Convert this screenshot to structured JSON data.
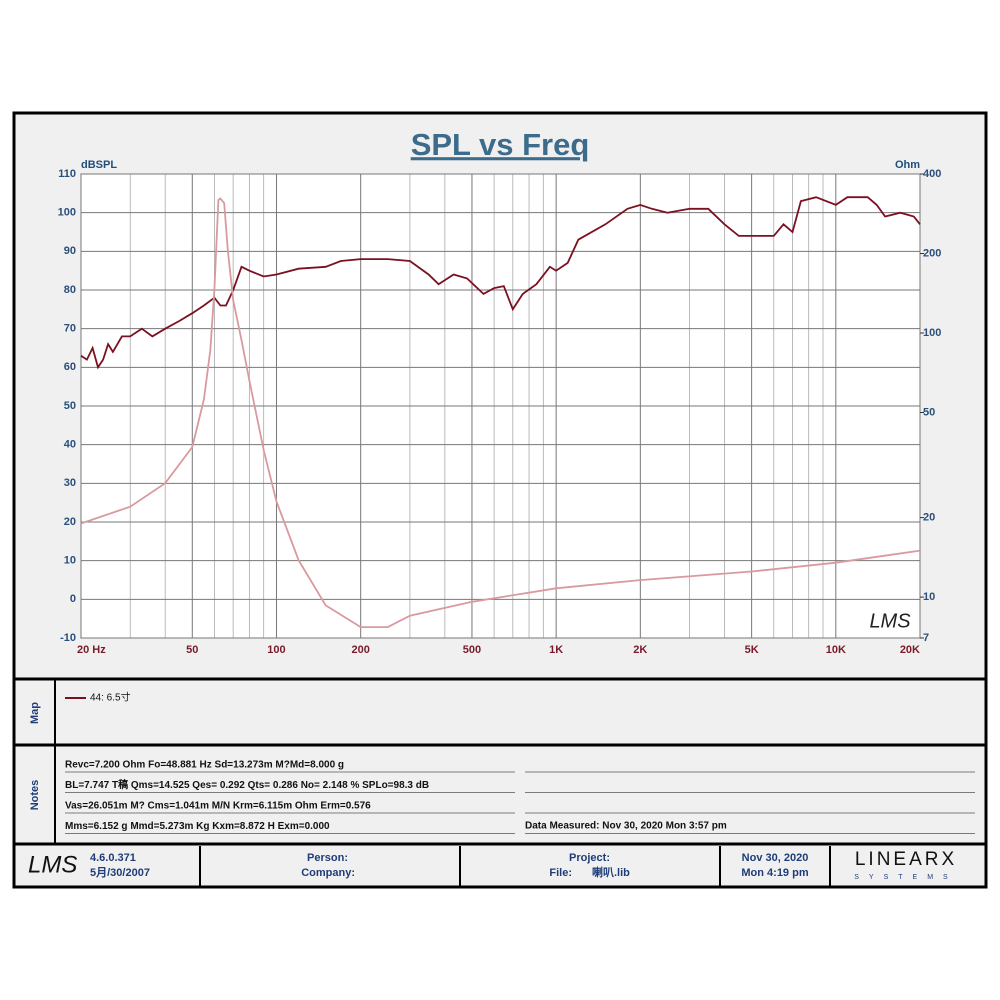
{
  "chart_data": {
    "type": "line",
    "title": "SPL vs Freq",
    "y_label": "dBSPL",
    "y2_label": "Ohm",
    "watermark": "LMS",
    "xlog": true,
    "y2log": true,
    "grid": true,
    "xlim": [
      20,
      20000
    ],
    "ylim": [
      -10,
      110
    ],
    "y2lim": [
      7,
      400
    ],
    "xticks": [
      {
        "value": 20,
        "label": "20  Hz"
      },
      50,
      100,
      200,
      500,
      {
        "value": 1000,
        "label": "1K"
      },
      {
        "value": 2000,
        "label": "2K"
      },
      {
        "value": 5000,
        "label": "5K"
      },
      {
        "value": 10000,
        "label": "10K"
      },
      {
        "value": 20000,
        "label": "20K"
      }
    ],
    "xgrid": [
      30,
      40,
      60,
      70,
      80,
      90,
      300,
      400,
      600,
      700,
      800,
      900,
      3000,
      4000,
      6000,
      7000,
      8000,
      9000
    ],
    "yticks": [
      -10,
      0,
      10,
      20,
      30,
      40,
      50,
      60,
      70,
      80,
      90,
      100,
      110
    ],
    "y2ticks": [
      7,
      10,
      20,
      50,
      100,
      200,
      400
    ],
    "series": [
      {
        "name": "44: 6.5寸",
        "color": "#7b1020",
        "x": [
          20,
          21,
          22,
          23,
          24,
          25,
          26,
          28,
          30,
          33,
          36,
          40,
          45,
          50,
          55,
          60,
          63,
          66,
          70,
          75,
          80,
          90,
          100,
          120,
          150,
          170,
          200,
          250,
          300,
          350,
          380,
          430,
          480,
          550,
          600,
          650,
          700,
          760,
          850,
          950,
          1000,
          1100,
          1200,
          1500,
          1800,
          2000,
          2200,
          2500,
          3000,
          3500,
          4000,
          4500,
          5000,
          6000,
          6500,
          7000,
          7500,
          8500,
          10000,
          11000,
          13000,
          14000,
          15000,
          17000,
          19000,
          20000
        ],
        "values": [
          63,
          62,
          65,
          60,
          62,
          66,
          64,
          68,
          68,
          70,
          68,
          70,
          72,
          74,
          76,
          78,
          76,
          76,
          80,
          86,
          85,
          83.5,
          84,
          85.5,
          86,
          87.5,
          88,
          88,
          87.5,
          84,
          81.5,
          84,
          83,
          79,
          80.5,
          81,
          75,
          79,
          81.5,
          86,
          85,
          87,
          93,
          97,
          101,
          102,
          101,
          100,
          101,
          101,
          97,
          94,
          94,
          94,
          97,
          95,
          103,
          104,
          102,
          104,
          104,
          102,
          99,
          100,
          99,
          97
        ]
      },
      {
        "color": "#d99a9e",
        "axis": "y2",
        "x": [
          20,
          30,
          40,
          50,
          55,
          58,
          60,
          62,
          63,
          65,
          67,
          70,
          75,
          80,
          90,
          100,
          120,
          150,
          200,
          250,
          300,
          500,
          1000,
          2000,
          5000,
          10000,
          20000
        ],
        "values": [
          19,
          22,
          27,
          37,
          56,
          86,
          146,
          319,
          323,
          310,
          206,
          133,
          94,
          66,
          36,
          23,
          13.8,
          9.3,
          7.7,
          7.7,
          8.5,
          9.6,
          10.8,
          11.6,
          12.5,
          13.5,
          15
        ]
      }
    ]
  },
  "map": {
    "label": "Map"
  },
  "notes": {
    "label": "Notes",
    "lines": [
      "Revc=7.200 Ohm  Fo=48.881 Hz  Sd=13.273m M?Md=8.000 g",
      "BL=7.747 T稿  Qms=14.525  Qes= 0.292  Qts= 0.286  No= 2.148 %  SPLo=98.3 dB",
      "Vas=26.051m M? Cms=1.041m M/N  Krm=6.115m Ohm  Erm=0.576",
      "Mms=6.152 g  Mmd=5.273m Kg  Kxm=8.872 H  Exm=0.000"
    ],
    "measured": "Data Measured: Nov 30, 2020  Mon  3:57 pm"
  },
  "footer": {
    "logo": "LMS",
    "version": "4.6.0.371",
    "version_date": "5月/30/2007",
    "person": "Person:",
    "company": "Company:",
    "project": "Project:",
    "file_label": "File:",
    "file": "喇叭.lib",
    "date": "Nov 30, 2020",
    "time": "Mon  4:19 pm",
    "brand": "LINEARX",
    "brand_sub": "SYSTEMS"
  }
}
